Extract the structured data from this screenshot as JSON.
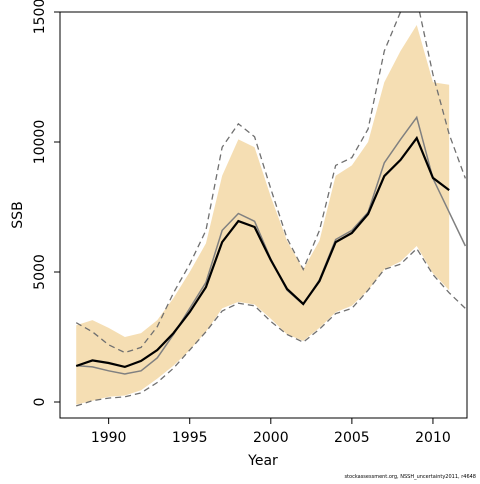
{
  "chart_data": {
    "type": "line",
    "xlabel": "Year",
    "ylabel": "SSB",
    "footnote": "stockassessment.org, NSSH_uncertainty2011, r4648",
    "x": [
      1988,
      1989,
      1990,
      1991,
      1992,
      1993,
      1994,
      1995,
      1996,
      1997,
      1998,
      1999,
      2000,
      2001,
      2002,
      2003,
      2004,
      2005,
      2006,
      2007,
      2008,
      2009,
      2010,
      2011,
      2012
    ],
    "band": {
      "color": "#f5deb3",
      "upper": [
        2950,
        3150,
        2850,
        2500,
        2650,
        3150,
        4000,
        5000,
        6100,
        8700,
        10100,
        9800,
        7900,
        6200,
        5100,
        6200,
        8700,
        9100,
        10000,
        12300,
        13500,
        14500,
        12300,
        12200,
        null
      ],
      "lower": [
        -100,
        50,
        200,
        250,
        450,
        900,
        1400,
        2000,
        2700,
        3600,
        3850,
        3750,
        3200,
        2600,
        2350,
        2850,
        3450,
        3700,
        4300,
        5100,
        5400,
        6000,
        4950,
        4300,
        null
      ]
    },
    "series": [
      {
        "color": "#707070",
        "width": 1.3,
        "dash": "6,4",
        "values": [
          3050,
          2700,
          2200,
          1900,
          2100,
          2900,
          4200,
          5300,
          6600,
          9800,
          10700,
          10200,
          8200,
          6300,
          5100,
          6600,
          9100,
          9400,
          10500,
          13500,
          15000,
          15500,
          12600,
          10300,
          8600
        ]
      },
      {
        "color": "#707070",
        "width": 1.3,
        "dash": "6,4",
        "values": [
          -150,
          50,
          150,
          200,
          350,
          750,
          1300,
          2000,
          2700,
          3500,
          3800,
          3700,
          3100,
          2600,
          2300,
          2800,
          3400,
          3600,
          4300,
          5100,
          5300,
          5900,
          4900,
          4200,
          3600
        ]
      },
      {
        "color": "#808080",
        "width": 1.5,
        "dash": "none",
        "values": [
          1400,
          1350,
          1200,
          1080,
          1200,
          1700,
          2600,
          3600,
          4600,
          6600,
          7250,
          6950,
          5500,
          4300,
          3750,
          4700,
          6250,
          6600,
          7300,
          9200,
          10100,
          10950,
          8600,
          7300,
          6000
        ]
      },
      {
        "color": "#000000",
        "width": 2.2,
        "dash": "none",
        "values": [
          1385,
          1600,
          1500,
          1350,
          1580,
          2000,
          2650,
          3460,
          4420,
          6150,
          6960,
          6730,
          5460,
          4350,
          3770,
          4650,
          6150,
          6500,
          7230,
          8690,
          9310,
          10150,
          8620,
          8150,
          null
        ]
      }
    ],
    "xlim": [
      1987,
      2012.1
    ],
    "xticks": [
      1990,
      1995,
      2000,
      2005,
      2010
    ],
    "ylim": [
      -615,
      15000
    ],
    "yticks": [
      0,
      5000,
      10000,
      15000
    ]
  }
}
